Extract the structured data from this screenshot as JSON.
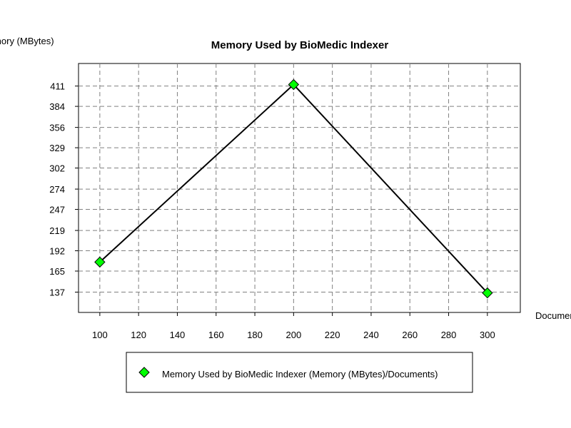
{
  "chart_data": {
    "type": "line",
    "title": "Memory Used by BioMedic Indexer",
    "ylabel": "Memory (MBytes)",
    "xlabel": "Documents",
    "x": [
      100,
      200,
      300
    ],
    "series": [
      {
        "name": "Memory Used by BioMedic Indexer (Memory (MBytes)/Documents)",
        "values": [
          177,
          413,
          136
        ],
        "color": "#00ff00"
      }
    ],
    "x_ticks": [
      100,
      120,
      140,
      160,
      180,
      200,
      220,
      240,
      260,
      280,
      300
    ],
    "y_ticks": [
      137,
      165,
      192,
      219,
      247,
      274,
      302,
      329,
      356,
      384,
      411
    ],
    "xlim": [
      89,
      317
    ],
    "ylim": [
      110,
      441
    ],
    "grid": true,
    "legend_position": "bottom"
  }
}
